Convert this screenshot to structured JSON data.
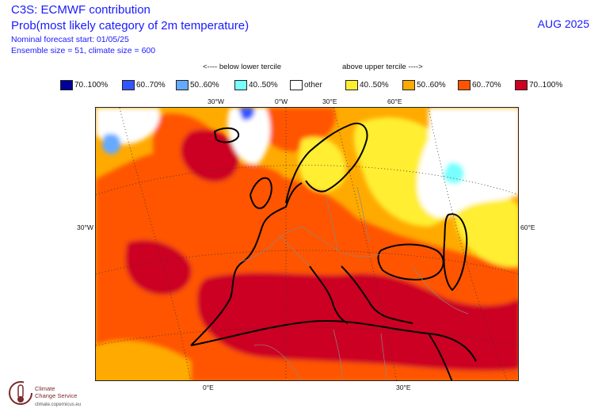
{
  "header": {
    "title": "C3S: ECMWF contribution",
    "subtitle": "Prob(most likely category of 2m temperature)",
    "forecast_start": "Nominal forecast start: 01/05/25",
    "ensemble": "Ensemble size = 51, climate size = 600",
    "period": "AUG 2025"
  },
  "legend": {
    "below_label": "<---- below lower tercile",
    "above_label": "above upper tercile ---->",
    "items": [
      {
        "label": "70..100%",
        "color": "#000099",
        "category": "below"
      },
      {
        "label": "60..70%",
        "color": "#3355ff",
        "category": "below"
      },
      {
        "label": "50..60%",
        "color": "#66aaff",
        "category": "below"
      },
      {
        "label": "40..50%",
        "color": "#77ffff",
        "category": "below"
      },
      {
        "label": "other",
        "color": "#ffffff",
        "category": "neutral"
      },
      {
        "label": "40..50%",
        "color": "#ffee33",
        "category": "above"
      },
      {
        "label": "50..60%",
        "color": "#ffaa00",
        "category": "above"
      },
      {
        "label": "60..70%",
        "color": "#ff5500",
        "category": "above"
      },
      {
        "label": "70..100%",
        "color": "#cc0022",
        "category": "above"
      }
    ]
  },
  "map": {
    "lon_labels_top": [
      "30°W",
      "0°W",
      "30°E",
      "60°E"
    ],
    "lon_labels_bottom": [
      "0°E",
      "30°E"
    ],
    "lat_labels_left": [
      "30°W"
    ],
    "lat_labels_right": [
      "60°E"
    ],
    "region": "Europe, North Africa and Middle East"
  },
  "logo": {
    "name_line1": "Climate",
    "name_line2": "Change Service",
    "url": "climate.copernicus.eu"
  }
}
